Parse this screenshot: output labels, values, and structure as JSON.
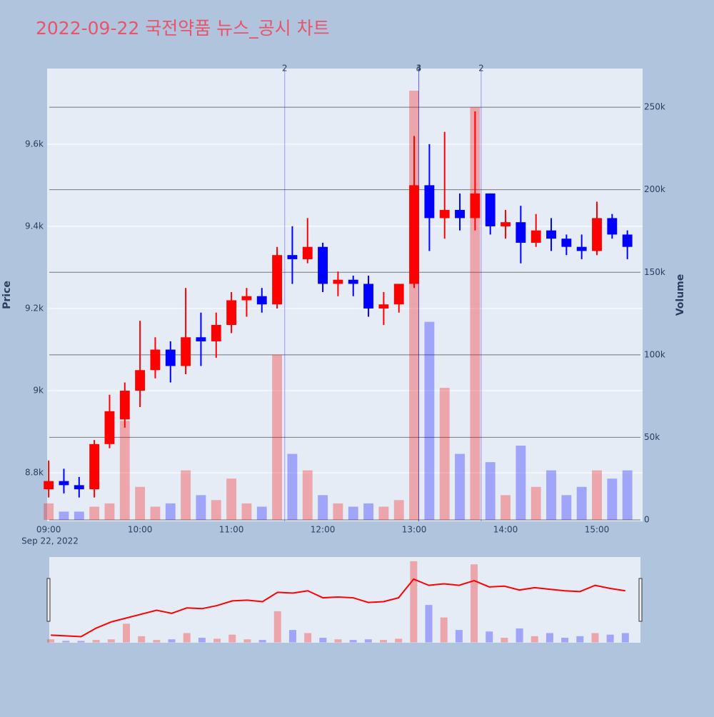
{
  "chart_data": {
    "type": "candlestick",
    "title": "2022-09-22 국전약품 뉴스_공시 차트",
    "y_label": "Price",
    "y2_label": "Volume",
    "x_sublabel": "Sep 22, 2022",
    "x": [
      "09:00",
      "09:10",
      "09:20",
      "09:30",
      "09:40",
      "09:50",
      "10:00",
      "10:10",
      "10:20",
      "10:30",
      "10:40",
      "10:50",
      "11:00",
      "11:10",
      "11:20",
      "11:30",
      "11:40",
      "11:50",
      "12:00",
      "12:10",
      "12:20",
      "12:30",
      "12:40",
      "12:50",
      "13:00",
      "13:10",
      "13:20",
      "13:30",
      "13:40",
      "13:50",
      "14:00",
      "14:10",
      "14:20",
      "14:30",
      "14:40",
      "14:50",
      "15:00",
      "15:10",
      "15:20"
    ],
    "open": [
      8760,
      8780,
      8770,
      8760,
      8870,
      8930,
      9000,
      9050,
      9100,
      9060,
      9130,
      9120,
      9160,
      9220,
      9230,
      9210,
      9330,
      9320,
      9350,
      9260,
      9270,
      9260,
      9200,
      9210,
      9260,
      9500,
      9420,
      9440,
      9420,
      9480,
      9400,
      9410,
      9360,
      9390,
      9370,
      9350,
      9340,
      9420,
      9380
    ],
    "high": [
      8830,
      8810,
      8790,
      8880,
      8990,
      9020,
      9170,
      9130,
      9120,
      9250,
      9190,
      9190,
      9240,
      9250,
      9250,
      9350,
      9400,
      9420,
      9360,
      9290,
      9280,
      9280,
      9240,
      9260,
      9620,
      9600,
      9630,
      9480,
      9680,
      9480,
      9440,
      9450,
      9430,
      9420,
      9380,
      9380,
      9460,
      9430,
      9390
    ],
    "low": [
      8740,
      8750,
      8740,
      8740,
      8860,
      8910,
      8960,
      9030,
      9020,
      9040,
      9060,
      9080,
      9140,
      9180,
      9190,
      9200,
      9260,
      9310,
      9240,
      9230,
      9230,
      9180,
      9160,
      9190,
      9250,
      9340,
      9370,
      9390,
      9390,
      9380,
      9370,
      9310,
      9350,
      9340,
      9330,
      9320,
      9330,
      9370,
      9320
    ],
    "close": [
      8780,
      8770,
      8760,
      8870,
      8950,
      9000,
      9050,
      9100,
      9060,
      9130,
      9120,
      9160,
      9220,
      9230,
      9210,
      9330,
      9320,
      9350,
      9260,
      9270,
      9260,
      9200,
      9210,
      9260,
      9500,
      9420,
      9440,
      9420,
      9480,
      9400,
      9410,
      9360,
      9390,
      9370,
      9350,
      9340,
      9420,
      9380,
      9350
    ],
    "volume": [
      10000,
      5000,
      5000,
      8000,
      10000,
      60000,
      20000,
      8000,
      10000,
      30000,
      15000,
      12000,
      25000,
      10000,
      8000,
      100000,
      40000,
      30000,
      15000,
      10000,
      8000,
      10000,
      8000,
      12000,
      260000,
      120000,
      80000,
      40000,
      250000,
      35000,
      15000,
      45000,
      20000,
      30000,
      15000,
      20000,
      30000,
      25000,
      30000
    ],
    "up_color": "#ff0000",
    "down_color": "#0000ff",
    "xlim": [
      "08:59",
      "15:30"
    ],
    "xticks": [
      "09:00",
      "10:00",
      "11:00",
      "12:00",
      "13:00",
      "14:00",
      "15:00"
    ],
    "ylim": [
      8682,
      9784
    ],
    "yticks": [
      {
        "value": 8800,
        "label": "8.8k"
      },
      {
        "value": 9000,
        "label": "9k"
      },
      {
        "value": 9200,
        "label": "9.2k"
      },
      {
        "value": 9400,
        "label": "9.4k"
      },
      {
        "value": 9600,
        "label": "9.6k"
      }
    ],
    "y2lim": [
      -865,
      273400
    ],
    "y2ticks": [
      0,
      {
        "value": 50000,
        "label": "50k"
      },
      {
        "value": 100000,
        "label": "100k"
      },
      {
        "value": 150000,
        "label": "150k"
      },
      {
        "value": 200000,
        "label": "200k"
      },
      {
        "value": 250000,
        "label": "250k"
      }
    ],
    "annotations": [
      {
        "x": "11:35",
        "text": "2"
      },
      {
        "x": "13:03",
        "text": "3"
      },
      {
        "x": "13:03",
        "text": "4"
      },
      {
        "x": "13:44",
        "text": "2"
      }
    ],
    "grid": true
  }
}
